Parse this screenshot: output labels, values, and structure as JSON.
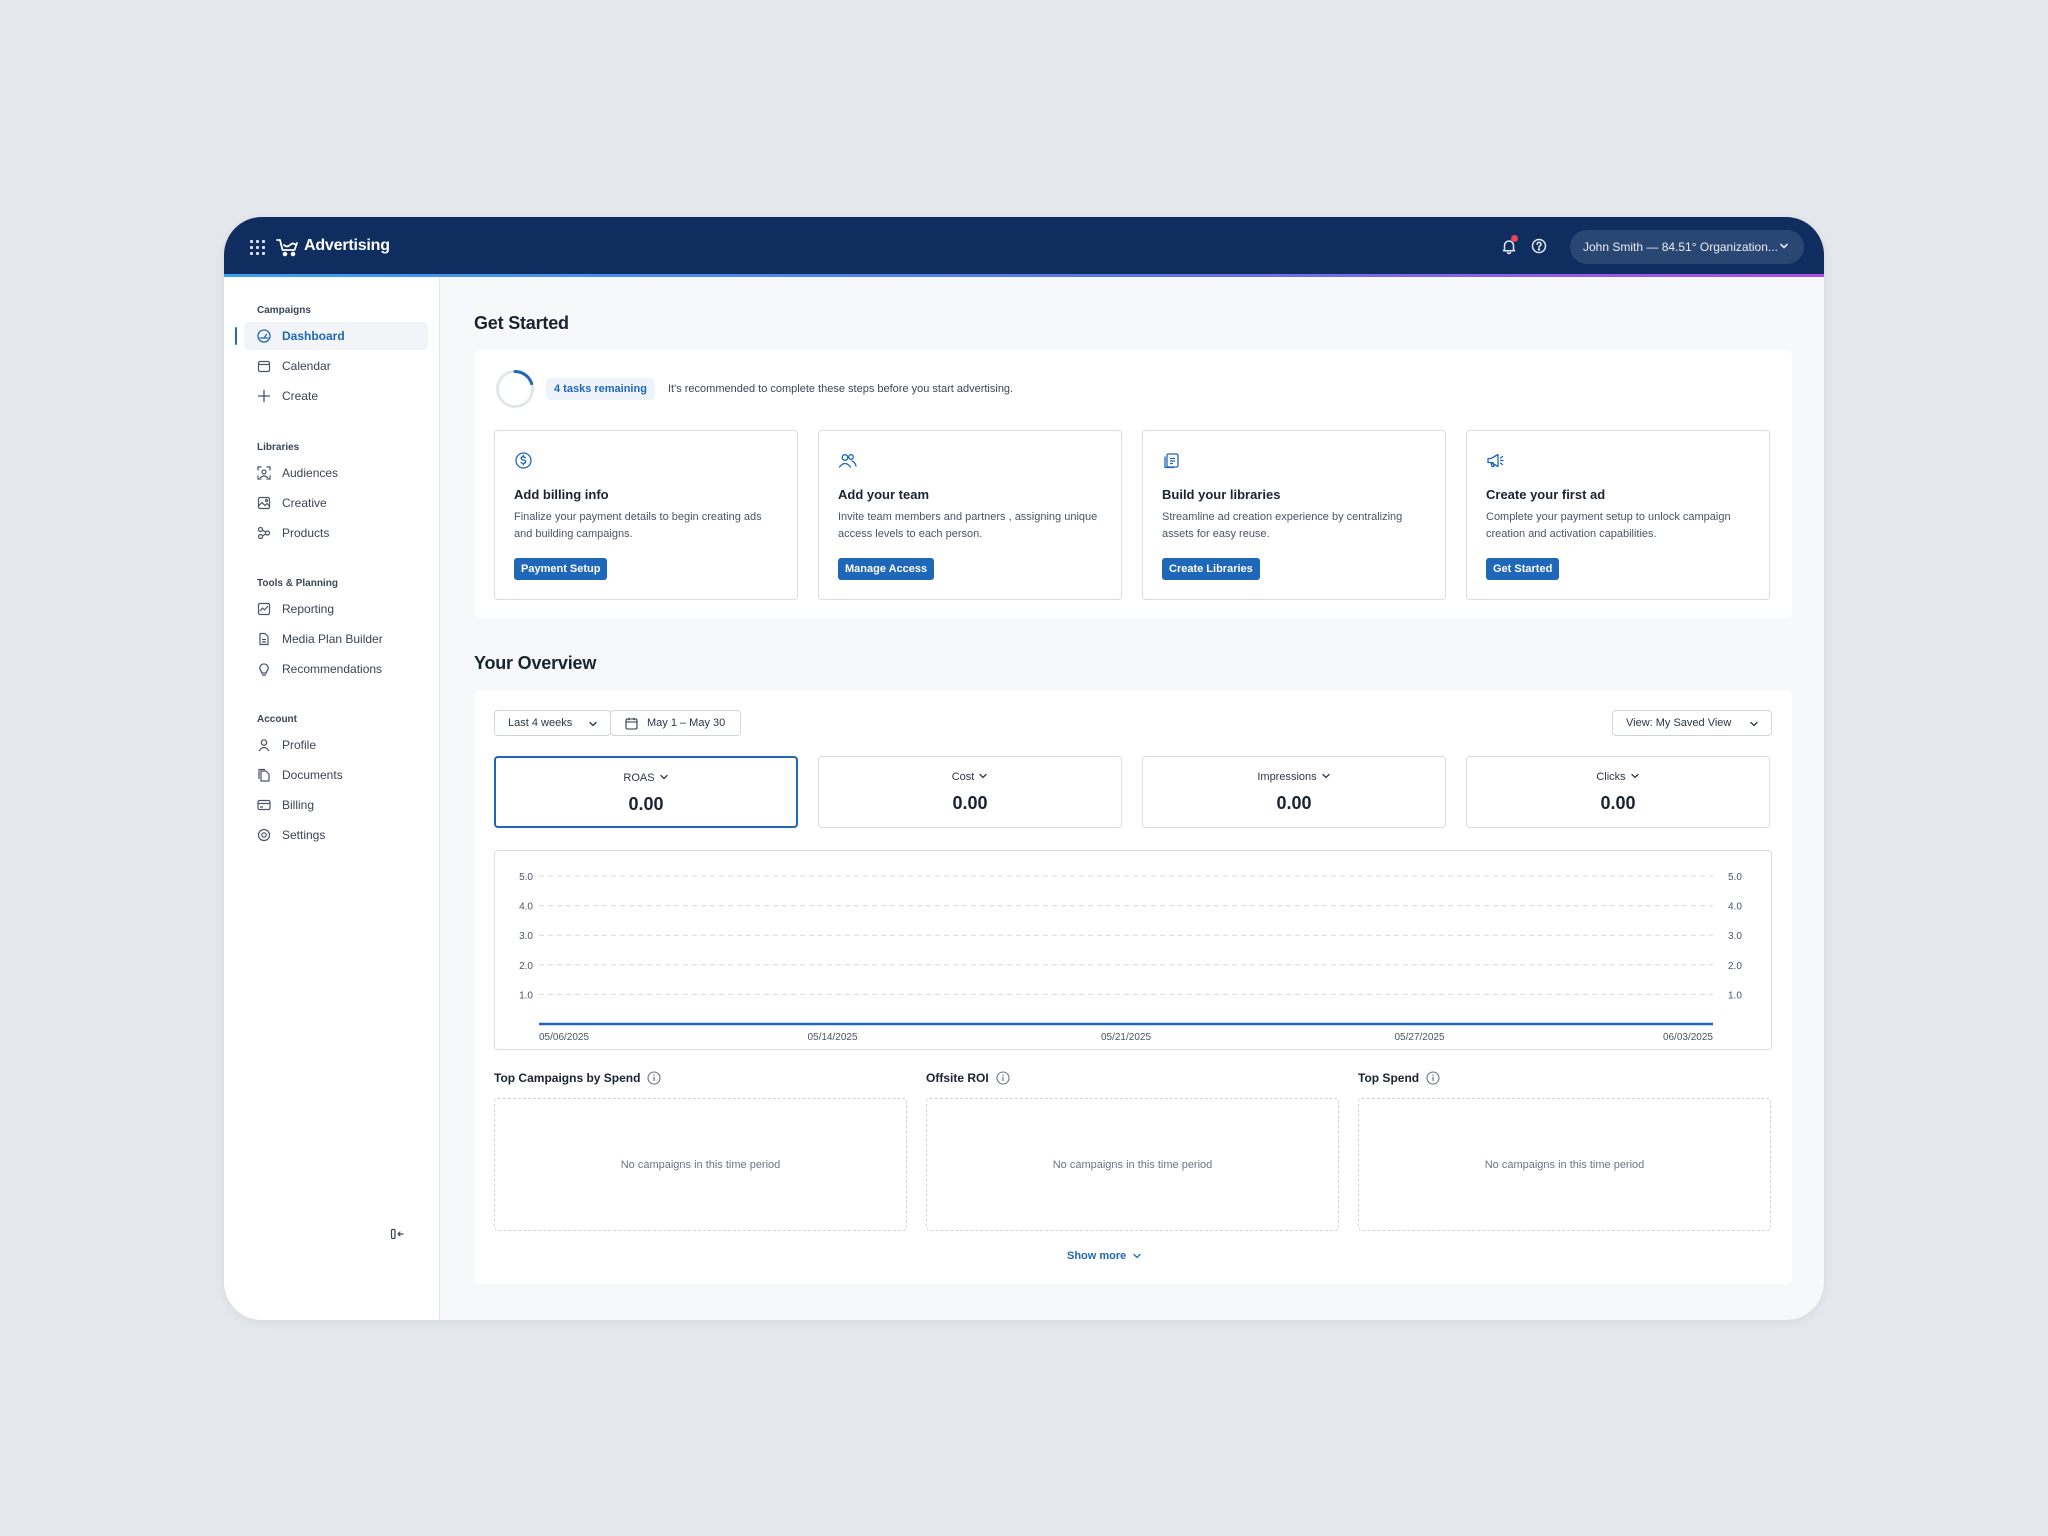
{
  "header": {
    "app_name": "Advertising",
    "user_label": "John Smith — 84.51° Organization...",
    "icons": [
      "apps-grid-icon",
      "brand-cart-icon",
      "bell-icon",
      "help-icon",
      "chevron-down-icon"
    ],
    "accent_color": "#0f2d5f"
  },
  "sidebar": {
    "groups": [
      {
        "title": "Campaigns",
        "items": [
          {
            "label": "Dashboard",
            "icon": "dashboard-icon",
            "active": true
          },
          {
            "label": "Calendar",
            "icon": "calendar-icon"
          },
          {
            "label": "Create",
            "icon": "plus-icon"
          }
        ]
      },
      {
        "title": "Libraries",
        "items": [
          {
            "label": "Audiences",
            "icon": "audiences-icon"
          },
          {
            "label": "Creative",
            "icon": "image-icon"
          },
          {
            "label": "Products",
            "icon": "products-icon"
          }
        ]
      },
      {
        "title": "Tools & Planning",
        "items": [
          {
            "label": "Reporting",
            "icon": "reporting-icon"
          },
          {
            "label": "Media Plan Builder",
            "icon": "document-icon"
          },
          {
            "label": "Recommendations",
            "icon": "lightbulb-icon"
          }
        ]
      },
      {
        "title": "Account",
        "items": [
          {
            "label": "Profile",
            "icon": "user-icon"
          },
          {
            "label": "Documents",
            "icon": "documents-icon"
          },
          {
            "label": "Billing",
            "icon": "credit-card-icon"
          },
          {
            "label": "Settings",
            "icon": "gear-icon"
          }
        ]
      }
    ]
  },
  "get_started": {
    "title": "Get Started",
    "tasks_badge": "4 tasks remaining",
    "note": "It's recommended to complete these steps before you start advertising.",
    "progress": 0.2,
    "cards": [
      {
        "icon": "dollar-circle-icon",
        "title": "Add billing info",
        "desc": "Finalize your payment details to begin creating ads and building campaigns.",
        "button": "Payment Setup"
      },
      {
        "icon": "team-icon",
        "title": "Add your team",
        "desc": "Invite team members and partners , assigning unique access levels to each person.",
        "button": "Manage Access"
      },
      {
        "icon": "library-icon",
        "title": "Build your libraries",
        "desc": "Streamline ad creation experience by centralizing assets for easy reuse.",
        "button": "Create Libraries"
      },
      {
        "icon": "megaphone-icon",
        "title": "Create your first ad",
        "desc": "Complete your payment setup to unlock campaign creation and activation capabilities.",
        "button": "Get Started"
      }
    ]
  },
  "overview": {
    "title": "Your Overview",
    "range_select": "Last 4 weeks",
    "date_range": "May 1 – May 30",
    "view_select": "View: My Saved View",
    "metrics": [
      {
        "label": "ROAS",
        "value": "0.00",
        "selected": true
      },
      {
        "label": "Cost",
        "value": "0.00"
      },
      {
        "label": "Impressions",
        "value": "0.00"
      },
      {
        "label": "Clicks",
        "value": "0.00"
      }
    ],
    "widgets": [
      {
        "title": "Top Campaigns by Spend",
        "empty": "No campaigns in this time period"
      },
      {
        "title": "Offsite ROI",
        "empty": "No campaigns in this time period"
      },
      {
        "title": "Top Spend",
        "empty": "No campaigns in this time period"
      }
    ],
    "show_more": "Show more"
  },
  "chart_data": {
    "type": "line",
    "x": [
      "05/06/2025",
      "05/14/2025",
      "05/21/2025",
      "05/27/2025",
      "06/03/2025"
    ],
    "series": [
      {
        "values": [
          0,
          0,
          0,
          0,
          0
        ],
        "color": "#1f67b8"
      }
    ],
    "yticks": [
      "5.0",
      "4.0",
      "3.0",
      "2.0",
      "1.0"
    ],
    "ylim": [
      0,
      5
    ],
    "y2ticks": [
      "5.0",
      "4.0",
      "3.0",
      "2.0",
      "1.0"
    ],
    "grid": true
  }
}
